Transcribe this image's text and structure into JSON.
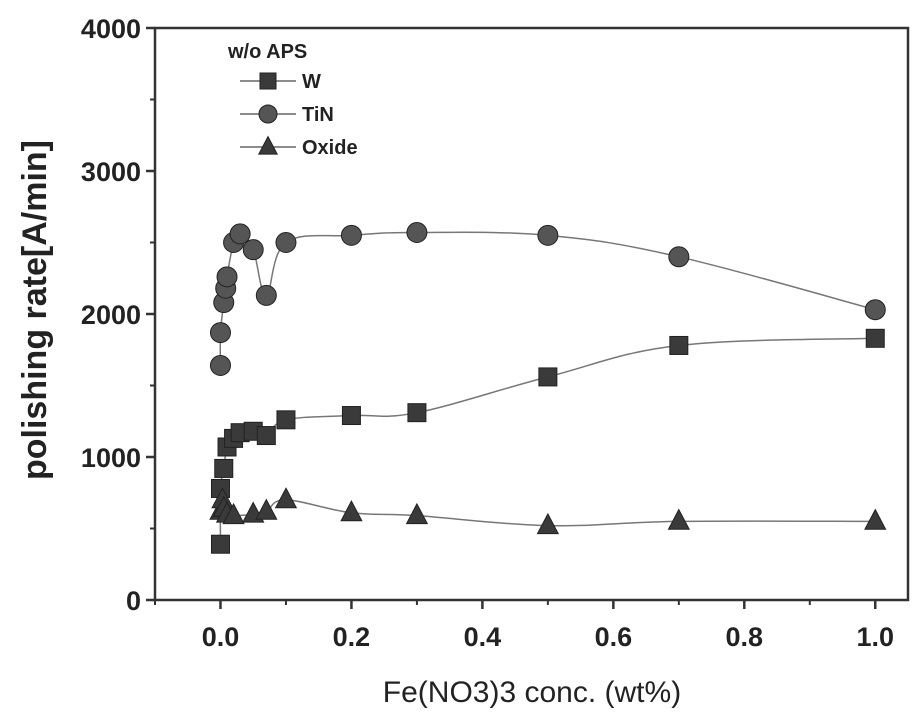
{
  "chart_data": {
    "type": "scatter",
    "title": "",
    "xlabel": "Fe(NO3)3 conc. (wt%)",
    "ylabel": "polishing rate[A/min]",
    "xlim": [
      -0.1,
      1.05
    ],
    "ylim": [
      0,
      4000
    ],
    "xticks": [
      "0.0",
      "0.2",
      "0.4",
      "0.6",
      "0.8",
      "1.0"
    ],
    "yticks": [
      "0",
      "1000",
      "2000",
      "3000",
      "4000"
    ],
    "grid": false,
    "legend": {
      "title": "w/o APS",
      "placement": "top-left"
    },
    "series": [
      {
        "name": "W",
        "marker": "square",
        "color": "#3a3a3a",
        "x": [
          0.0,
          0.0,
          0.005,
          0.01,
          0.02,
          0.03,
          0.05,
          0.07,
          0.1,
          0.2,
          0.3,
          0.5,
          0.7,
          1.0
        ],
        "y": [
          390,
          780,
          920,
          1070,
          1130,
          1170,
          1180,
          1150,
          1260,
          1290,
          1310,
          1560,
          1780,
          1830
        ]
      },
      {
        "name": "TiN",
        "marker": "circle",
        "color": "#555555",
        "x": [
          0.0,
          0.0,
          0.005,
          0.008,
          0.01,
          0.02,
          0.03,
          0.05,
          0.07,
          0.1,
          0.2,
          0.3,
          0.5,
          0.7,
          1.0
        ],
        "y": [
          1640,
          1870,
          2080,
          2180,
          2260,
          2500,
          2560,
          2450,
          2130,
          2500,
          2550,
          2570,
          2550,
          2400,
          2030
        ]
      },
      {
        "name": "Oxide",
        "marker": "triangle",
        "color": "#3a3a3a",
        "x": [
          0.0,
          0.003,
          0.005,
          0.01,
          0.02,
          0.05,
          0.07,
          0.1,
          0.2,
          0.3,
          0.5,
          0.7,
          1.0
        ],
        "y": [
          620,
          700,
          640,
          600,
          590,
          600,
          620,
          700,
          610,
          590,
          520,
          550,
          550
        ]
      }
    ]
  }
}
